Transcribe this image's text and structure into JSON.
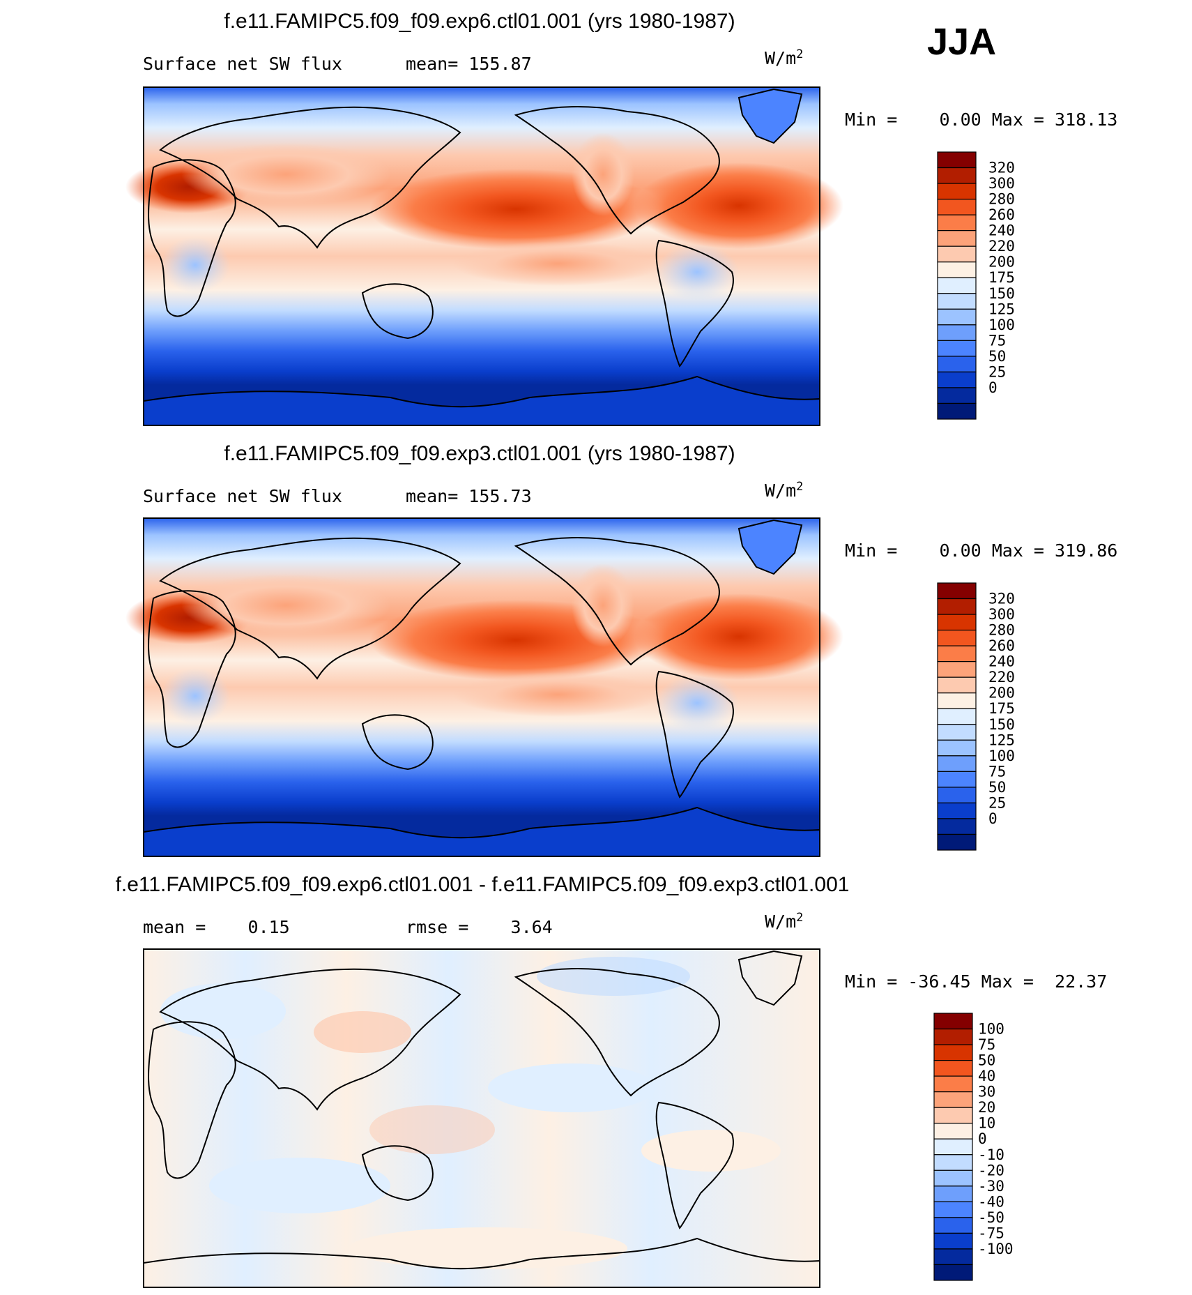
{
  "season": "JJA",
  "chart_data": [
    {
      "type": "heatmap",
      "title": "f.e11.FAMIPC5.f09_f09.exp6.ctl01.001 (yrs 1980-1987)",
      "left_label": "Surface net SW flux",
      "center_label": "mean= 155.87",
      "units": "W/m",
      "units_exp": "2",
      "stats": "Min =    0.00 Max = 318.13",
      "levels": [
        "320",
        "300",
        "280",
        "260",
        "240",
        "220",
        "200",
        "175",
        "150",
        "125",
        "100",
        "75",
        "50",
        "25",
        "0"
      ],
      "colors": [
        "#840000",
        "#b21e00",
        "#d83400",
        "#f2561f",
        "#fb7d48",
        "#fca37a",
        "#fdcab0",
        "#fdf0e4",
        "#e0efff",
        "#c2dcff",
        "#9cc3ff",
        "#6e9ffc",
        "#4c84ff",
        "#2a62ec",
        "#0a3ecc",
        "#042a9e",
        "#001a78"
      ]
    },
    {
      "type": "heatmap",
      "title": "f.e11.FAMIPC5.f09_f09.exp3.ctl01.001 (yrs 1980-1987)",
      "left_label": "Surface net SW flux",
      "center_label": "mean= 155.73",
      "units": "W/m",
      "units_exp": "2",
      "stats": "Min =    0.00 Max = 319.86",
      "levels": [
        "320",
        "300",
        "280",
        "260",
        "240",
        "220",
        "200",
        "175",
        "150",
        "125",
        "100",
        "75",
        "50",
        "25",
        "0"
      ],
      "colors": [
        "#840000",
        "#b21e00",
        "#d83400",
        "#f2561f",
        "#fb7d48",
        "#fca37a",
        "#fdcab0",
        "#fdf0e4",
        "#e0efff",
        "#c2dcff",
        "#9cc3ff",
        "#6e9ffc",
        "#4c84ff",
        "#2a62ec",
        "#0a3ecc",
        "#042a9e",
        "#001a78"
      ]
    },
    {
      "type": "heatmap",
      "title": "f.e11.FAMIPC5.f09_f09.exp6.ctl01.001 - f.e11.FAMIPC5.f09_f09.exp3.ctl01.001",
      "left_label": "mean =    0.15",
      "center_label": "rmse =    3.64",
      "units": "W/m",
      "units_exp": "2",
      "stats": "Min = -36.45 Max =  22.37",
      "levels": [
        "100",
        "75",
        "50",
        "40",
        "30",
        "20",
        "10",
        "0",
        "-10",
        "-20",
        "-30",
        "-40",
        "-50",
        "-75",
        "-100"
      ],
      "colors": [
        "#840000",
        "#b21e00",
        "#d83400",
        "#f2561f",
        "#fb7d48",
        "#fca37a",
        "#fdcab0",
        "#fdf0e4",
        "#e0efff",
        "#c2dcff",
        "#9cc3ff",
        "#6e9ffc",
        "#4c84ff",
        "#2a62ec",
        "#0a3ecc",
        "#042a9e",
        "#001a78"
      ]
    }
  ]
}
